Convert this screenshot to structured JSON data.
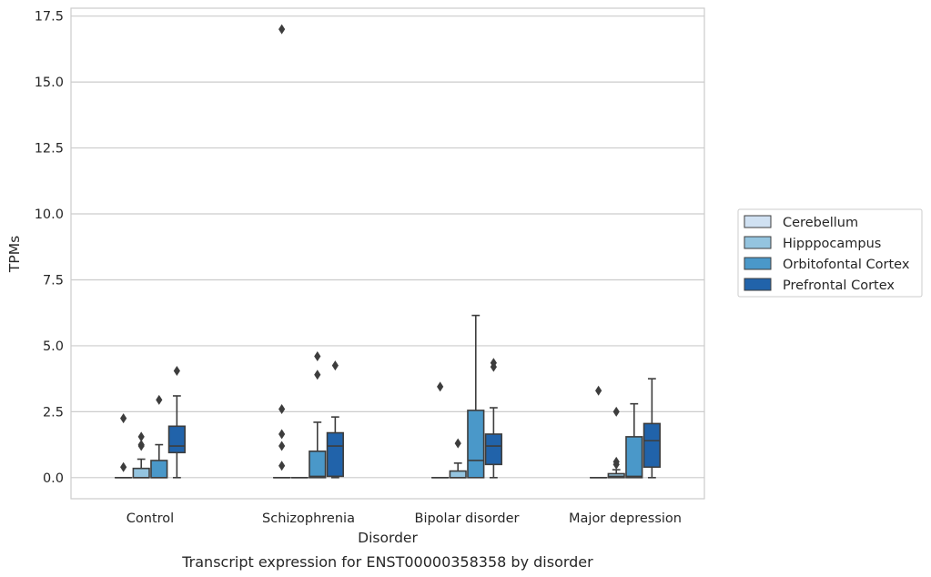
{
  "chart_data": {
    "type": "box",
    "title": "",
    "caption": "Transcript expression for ENST00000358358 by disorder",
    "xlabel": "Disorder",
    "ylabel": "TPMs",
    "ylim": [
      -0.8,
      17.8
    ],
    "yticks": [
      0.0,
      2.5,
      5.0,
      7.5,
      10.0,
      12.5,
      15.0,
      17.5
    ],
    "ytick_labels": [
      "0.0",
      "2.5",
      "5.0",
      "7.5",
      "10.0",
      "12.5",
      "15.0",
      "17.5"
    ],
    "grid": "horizontal",
    "legend_position": "right",
    "categories": [
      "Control",
      "Schizophrenia",
      "Bipolar disorder",
      "Major depression"
    ],
    "series": [
      {
        "name": "Cerebellum",
        "color": "#d0e1f2",
        "boxes": [
          {
            "q1": 0,
            "median": 0,
            "q3": 0,
            "whisker_low": 0,
            "whisker_high": 0,
            "outliers": [
              0.4,
              2.25
            ]
          },
          {
            "q1": 0,
            "median": 0,
            "q3": 0,
            "whisker_low": 0,
            "whisker_high": 0,
            "outliers": [
              0.45,
              1.2,
              1.65,
              2.6,
              17.0
            ]
          },
          {
            "q1": 0,
            "median": 0,
            "q3": 0,
            "whisker_low": 0,
            "whisker_high": 0,
            "outliers": [
              3.45
            ]
          },
          {
            "q1": 0,
            "median": 0,
            "q3": 0,
            "whisker_low": 0,
            "whisker_high": 0,
            "outliers": [
              3.3
            ]
          }
        ]
      },
      {
        "name": "Hipppocampus",
        "color": "#94c4df",
        "boxes": [
          {
            "q1": 0,
            "median": 0,
            "q3": 0.35,
            "whisker_low": 0,
            "whisker_high": 0.7,
            "outliers": [
              1.2,
              1.25,
              1.55
            ]
          },
          {
            "q1": 0,
            "median": 0,
            "q3": 0,
            "whisker_low": 0,
            "whisker_high": 0,
            "outliers": []
          },
          {
            "q1": 0,
            "median": 0,
            "q3": 0.25,
            "whisker_low": 0,
            "whisker_high": 0.55,
            "outliers": [
              1.3
            ]
          },
          {
            "q1": 0,
            "median": 0.05,
            "q3": 0.15,
            "whisker_low": 0,
            "whisker_high": 0.3,
            "outliers": [
              0.5,
              0.6,
              2.5
            ]
          }
        ]
      },
      {
        "name": "Orbitofontal Cortex",
        "color": "#4a98c9",
        "boxes": [
          {
            "q1": 0,
            "median": 0,
            "q3": 0.65,
            "whisker_low": 0,
            "whisker_high": 1.25,
            "outliers": [
              2.95
            ]
          },
          {
            "q1": 0,
            "median": 0.05,
            "q3": 1.0,
            "whisker_low": 0,
            "whisker_high": 2.1,
            "outliers": [
              3.9,
              4.6
            ]
          },
          {
            "q1": 0,
            "median": 0.65,
            "q3": 2.55,
            "whisker_low": 0,
            "whisker_high": 6.15,
            "outliers": []
          },
          {
            "q1": 0,
            "median": 0.05,
            "q3": 1.55,
            "whisker_low": 0,
            "whisker_high": 2.8,
            "outliers": []
          }
        ]
      },
      {
        "name": "Prefrontal Cortex",
        "color": "#2163aa",
        "boxes": [
          {
            "q1": 0.95,
            "median": 1.2,
            "q3": 1.95,
            "whisker_low": 0,
            "whisker_high": 3.1,
            "outliers": [
              4.05
            ]
          },
          {
            "q1": 0.05,
            "median": 1.2,
            "q3": 1.7,
            "whisker_low": 0,
            "whisker_high": 2.3,
            "outliers": [
              4.25
            ]
          },
          {
            "q1": 0.5,
            "median": 1.2,
            "q3": 1.65,
            "whisker_low": 0,
            "whisker_high": 2.65,
            "outliers": [
              4.2,
              4.35
            ]
          },
          {
            "q1": 0.4,
            "median": 1.4,
            "q3": 2.05,
            "whisker_low": 0,
            "whisker_high": 3.75,
            "outliers": []
          }
        ]
      }
    ]
  }
}
